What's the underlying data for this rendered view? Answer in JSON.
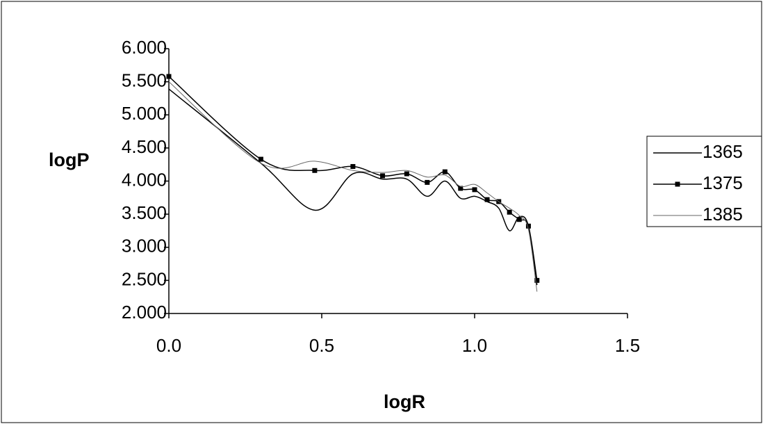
{
  "chart_data": {
    "type": "line",
    "x_label": "logR",
    "y_label": "logP",
    "x": [
      0,
      0.301,
      0.477,
      0.602,
      0.699,
      0.778,
      0.845,
      0.903,
      0.954,
      1.0,
      1.041,
      1.079,
      1.114,
      1.146,
      1.176,
      1.204
    ],
    "series": [
      {
        "name": "1365",
        "color": "#000000",
        "marker": "none",
        "values": [
          5.39,
          4.27,
          3.56,
          4.11,
          4.03,
          4.03,
          3.77,
          4.0,
          3.74,
          3.77,
          3.69,
          3.59,
          3.25,
          3.46,
          3.32,
          2.43
        ]
      },
      {
        "name": "1375",
        "color": "#000000",
        "marker": "square",
        "values": [
          5.58,
          4.33,
          4.16,
          4.22,
          4.08,
          4.11,
          3.98,
          4.14,
          3.89,
          3.87,
          3.72,
          3.69,
          3.53,
          3.42,
          3.32,
          2.5
        ]
      },
      {
        "name": "1385",
        "color": "#666666",
        "marker": "none",
        "values": [
          5.5,
          4.27,
          4.3,
          4.16,
          4.13,
          4.16,
          4.06,
          4.09,
          3.92,
          3.95,
          3.82,
          3.69,
          3.59,
          3.48,
          3.27,
          2.33
        ]
      }
    ],
    "xlim": [
      0,
      1.5
    ],
    "xticks": [
      {
        "value": 0,
        "label": "0.0"
      },
      {
        "value": 0.5,
        "label": "0.5"
      },
      {
        "value": 1,
        "label": "1.0"
      },
      {
        "value": 1.5,
        "label": "1.5"
      }
    ],
    "ylim": [
      2,
      6
    ],
    "yticks": [
      {
        "value": 2,
        "label": "2.000"
      },
      {
        "value": 2.5,
        "label": "2.500"
      },
      {
        "value": 3,
        "label": "3.000"
      },
      {
        "value": 3.5,
        "label": "3.500"
      },
      {
        "value": 4,
        "label": "4.000"
      },
      {
        "value": 4.5,
        "label": "4.500"
      },
      {
        "value": 5,
        "label": "5.000"
      },
      {
        "value": 5.5,
        "label": "5.500"
      },
      {
        "value": 6,
        "label": "6.000"
      }
    ],
    "grid": false,
    "legend": "right",
    "smooth": true
  }
}
